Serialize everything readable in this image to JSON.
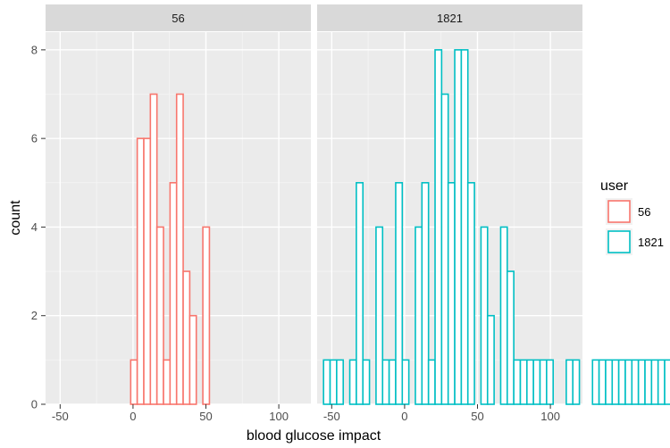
{
  "chart_data": {
    "type": "histogram",
    "facet_by": "user",
    "xlabel": "blood glucose impact",
    "ylabel": "count",
    "xlim": [
      -60,
      122
    ],
    "ylim": [
      0,
      8.4
    ],
    "x_ticks": [
      -50,
      0,
      50,
      100
    ],
    "y_ticks": [
      0,
      2,
      4,
      6,
      8
    ],
    "bin_width": 4.5,
    "first_bin_start": -55.6,
    "grid": true,
    "legend": {
      "title": "user",
      "position": "right",
      "entries": [
        {
          "label": "56",
          "color": "#F8766D"
        },
        {
          "label": "1821",
          "color": "#00BFC4"
        }
      ]
    },
    "panels": [
      {
        "strip": "56",
        "color": "#F8766D",
        "counts": [
          0,
          0,
          0,
          0,
          0,
          0,
          0,
          0,
          0,
          0,
          0,
          0,
          1,
          6,
          6,
          7,
          4,
          1,
          5,
          7,
          3,
          2,
          0,
          4,
          0,
          0,
          0,
          0,
          0,
          0,
          0,
          0,
          0,
          0,
          0,
          0,
          0,
          0,
          0,
          0,
          0,
          0,
          0,
          0,
          0,
          0,
          0,
          0,
          0,
          0,
          0,
          0,
          0,
          0,
          0,
          0,
          0,
          0,
          0,
          0
        ]
      },
      {
        "strip": "1821",
        "color": "#00BFC4",
        "counts": [
          1,
          1,
          1,
          0,
          1,
          5,
          1,
          0,
          4,
          1,
          1,
          5,
          1,
          0,
          4,
          5,
          1,
          8,
          7,
          5,
          8,
          8,
          5,
          0,
          4,
          2,
          0,
          4,
          3,
          1,
          1,
          1,
          1,
          1,
          1,
          0,
          0,
          1,
          1,
          0,
          0,
          1,
          1,
          1,
          1,
          1,
          1,
          1,
          1,
          1,
          1,
          1,
          1,
          1,
          1,
          1,
          1,
          1,
          1,
          1
        ]
      }
    ]
  }
}
